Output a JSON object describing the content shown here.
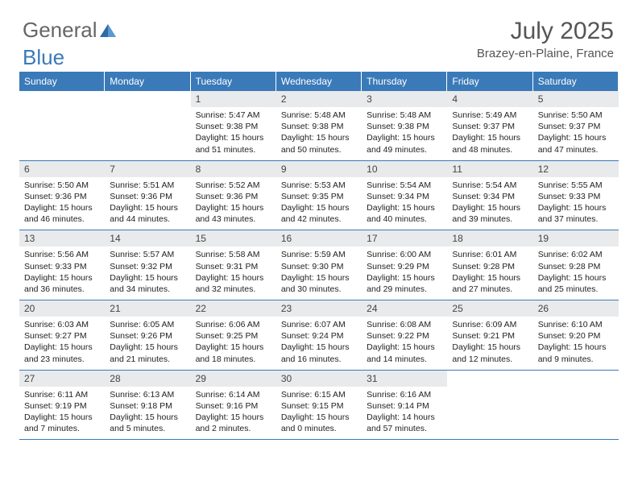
{
  "logo": {
    "part1": "General",
    "part2": "Blue"
  },
  "title": "July 2025",
  "location": "Brazey-en-Plaine, France",
  "colors": {
    "header_bg": "#3a7ab8",
    "header_text": "#ffffff",
    "daynum_bg": "#e9eaeb",
    "border": "#3a7ab8",
    "body_text": "#222222",
    "title_text": "#555555"
  },
  "day_headers": [
    "Sunday",
    "Monday",
    "Tuesday",
    "Wednesday",
    "Thursday",
    "Friday",
    "Saturday"
  ],
  "leading_blanks": 2,
  "days": [
    {
      "n": 1,
      "sunrise": "5:47 AM",
      "sunset": "9:38 PM",
      "daylight": "15 hours and 51 minutes."
    },
    {
      "n": 2,
      "sunrise": "5:48 AM",
      "sunset": "9:38 PM",
      "daylight": "15 hours and 50 minutes."
    },
    {
      "n": 3,
      "sunrise": "5:48 AM",
      "sunset": "9:38 PM",
      "daylight": "15 hours and 49 minutes."
    },
    {
      "n": 4,
      "sunrise": "5:49 AM",
      "sunset": "9:37 PM",
      "daylight": "15 hours and 48 minutes."
    },
    {
      "n": 5,
      "sunrise": "5:50 AM",
      "sunset": "9:37 PM",
      "daylight": "15 hours and 47 minutes."
    },
    {
      "n": 6,
      "sunrise": "5:50 AM",
      "sunset": "9:36 PM",
      "daylight": "15 hours and 46 minutes."
    },
    {
      "n": 7,
      "sunrise": "5:51 AM",
      "sunset": "9:36 PM",
      "daylight": "15 hours and 44 minutes."
    },
    {
      "n": 8,
      "sunrise": "5:52 AM",
      "sunset": "9:36 PM",
      "daylight": "15 hours and 43 minutes."
    },
    {
      "n": 9,
      "sunrise": "5:53 AM",
      "sunset": "9:35 PM",
      "daylight": "15 hours and 42 minutes."
    },
    {
      "n": 10,
      "sunrise": "5:54 AM",
      "sunset": "9:34 PM",
      "daylight": "15 hours and 40 minutes."
    },
    {
      "n": 11,
      "sunrise": "5:54 AM",
      "sunset": "9:34 PM",
      "daylight": "15 hours and 39 minutes."
    },
    {
      "n": 12,
      "sunrise": "5:55 AM",
      "sunset": "9:33 PM",
      "daylight": "15 hours and 37 minutes."
    },
    {
      "n": 13,
      "sunrise": "5:56 AM",
      "sunset": "9:33 PM",
      "daylight": "15 hours and 36 minutes."
    },
    {
      "n": 14,
      "sunrise": "5:57 AM",
      "sunset": "9:32 PM",
      "daylight": "15 hours and 34 minutes."
    },
    {
      "n": 15,
      "sunrise": "5:58 AM",
      "sunset": "9:31 PM",
      "daylight": "15 hours and 32 minutes."
    },
    {
      "n": 16,
      "sunrise": "5:59 AM",
      "sunset": "9:30 PM",
      "daylight": "15 hours and 30 minutes."
    },
    {
      "n": 17,
      "sunrise": "6:00 AM",
      "sunset": "9:29 PM",
      "daylight": "15 hours and 29 minutes."
    },
    {
      "n": 18,
      "sunrise": "6:01 AM",
      "sunset": "9:28 PM",
      "daylight": "15 hours and 27 minutes."
    },
    {
      "n": 19,
      "sunrise": "6:02 AM",
      "sunset": "9:28 PM",
      "daylight": "15 hours and 25 minutes."
    },
    {
      "n": 20,
      "sunrise": "6:03 AM",
      "sunset": "9:27 PM",
      "daylight": "15 hours and 23 minutes."
    },
    {
      "n": 21,
      "sunrise": "6:05 AM",
      "sunset": "9:26 PM",
      "daylight": "15 hours and 21 minutes."
    },
    {
      "n": 22,
      "sunrise": "6:06 AM",
      "sunset": "9:25 PM",
      "daylight": "15 hours and 18 minutes."
    },
    {
      "n": 23,
      "sunrise": "6:07 AM",
      "sunset": "9:24 PM",
      "daylight": "15 hours and 16 minutes."
    },
    {
      "n": 24,
      "sunrise": "6:08 AM",
      "sunset": "9:22 PM",
      "daylight": "15 hours and 14 minutes."
    },
    {
      "n": 25,
      "sunrise": "6:09 AM",
      "sunset": "9:21 PM",
      "daylight": "15 hours and 12 minutes."
    },
    {
      "n": 26,
      "sunrise": "6:10 AM",
      "sunset": "9:20 PM",
      "daylight": "15 hours and 9 minutes."
    },
    {
      "n": 27,
      "sunrise": "6:11 AM",
      "sunset": "9:19 PM",
      "daylight": "15 hours and 7 minutes."
    },
    {
      "n": 28,
      "sunrise": "6:13 AM",
      "sunset": "9:18 PM",
      "daylight": "15 hours and 5 minutes."
    },
    {
      "n": 29,
      "sunrise": "6:14 AM",
      "sunset": "9:16 PM",
      "daylight": "15 hours and 2 minutes."
    },
    {
      "n": 30,
      "sunrise": "6:15 AM",
      "sunset": "9:15 PM",
      "daylight": "15 hours and 0 minutes."
    },
    {
      "n": 31,
      "sunrise": "6:16 AM",
      "sunset": "9:14 PM",
      "daylight": "14 hours and 57 minutes."
    }
  ],
  "labels": {
    "sunrise": "Sunrise:",
    "sunset": "Sunset:",
    "daylight": "Daylight:"
  }
}
